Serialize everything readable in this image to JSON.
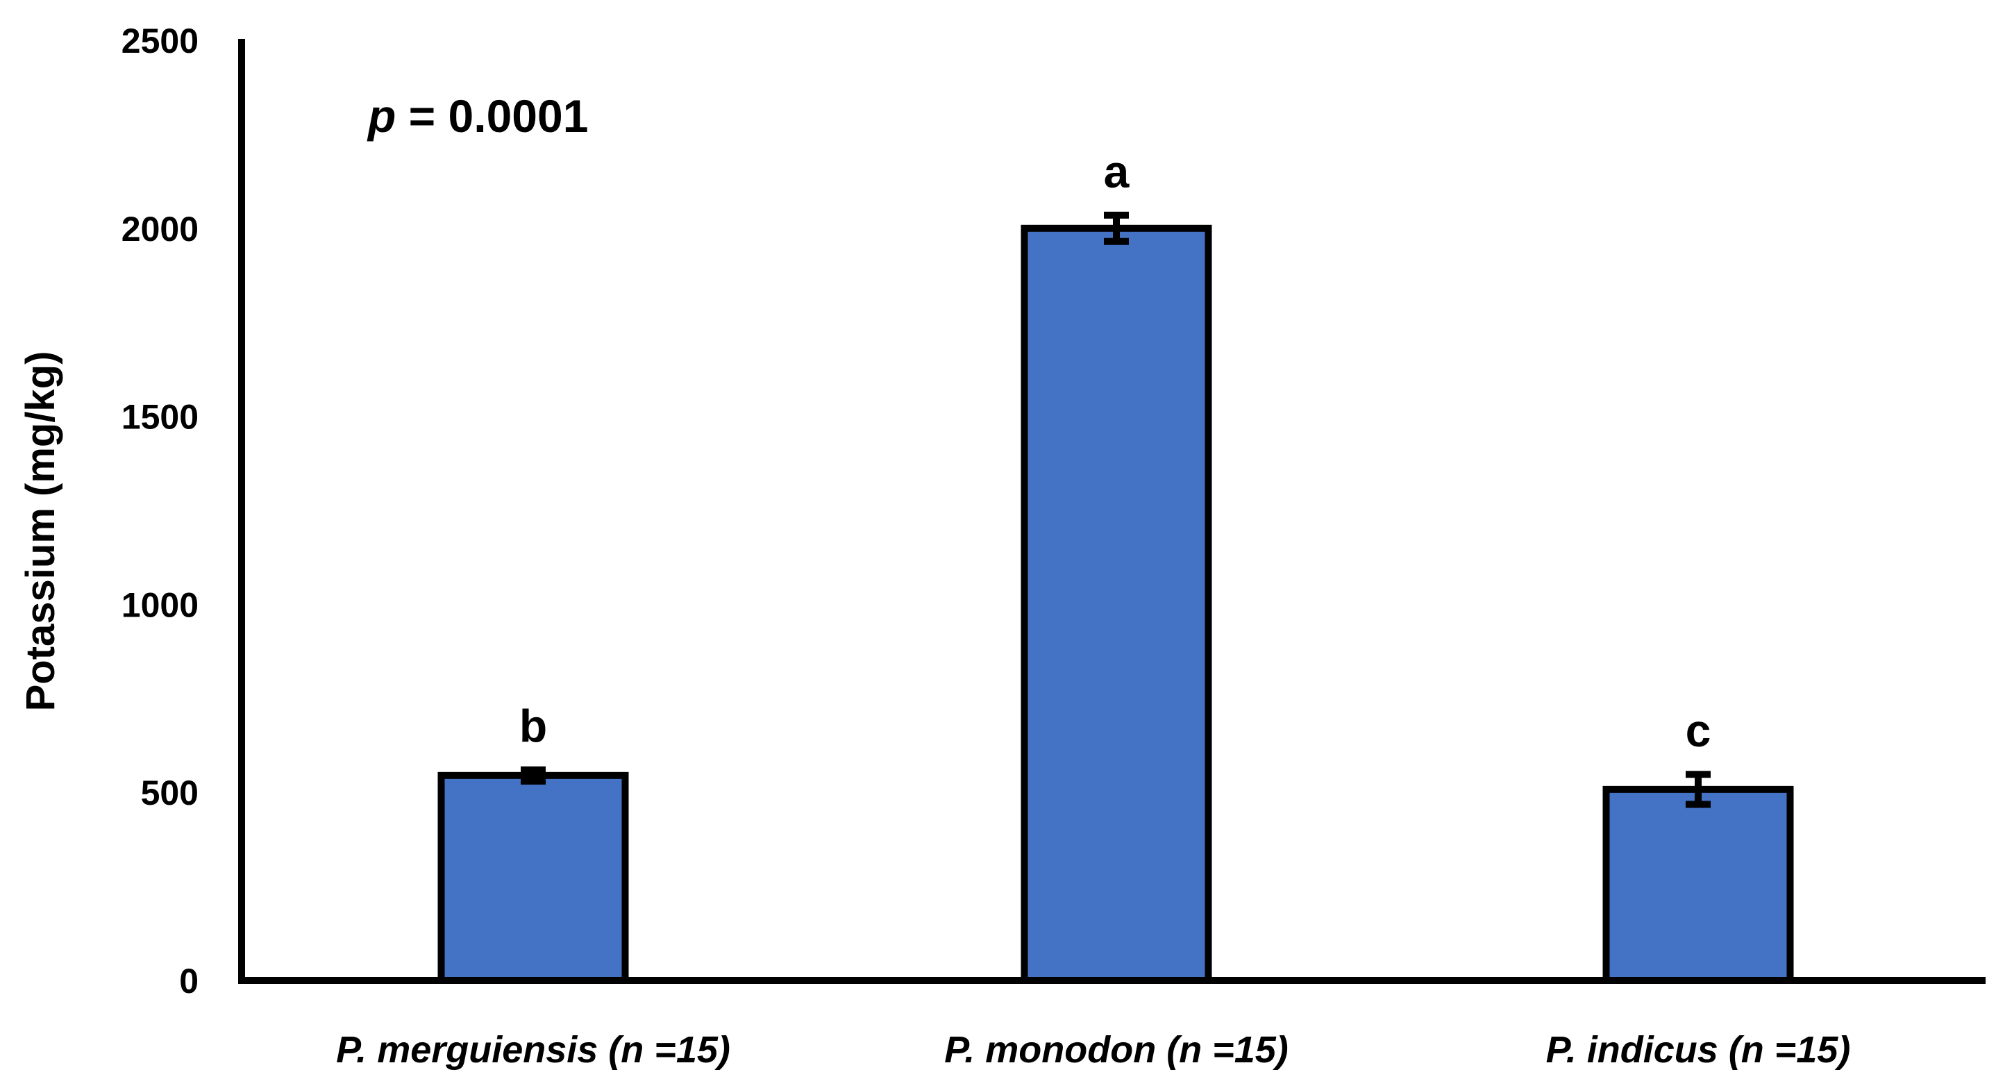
{
  "chart_data": {
    "type": "bar",
    "categories": [
      "P. merguiensis (n =15)",
      "P. monodon (n =15)",
      "P. indicus (n =15)"
    ],
    "values": [
      545,
      2000,
      508
    ],
    "errors": [
      15,
      35,
      40
    ],
    "significance_letters": [
      "b",
      "a",
      "c"
    ],
    "ylabel": "Potassium (mg/kg)",
    "xlabel": "",
    "ylim": [
      0,
      2500
    ],
    "yticks": [
      0,
      500,
      1000,
      1500,
      2000,
      2500
    ],
    "annotation": {
      "p_symbol": "p",
      "p_text": " = 0.0001"
    },
    "grid": false,
    "bar_color": "#4472C4",
    "edge_color": "#000000"
  }
}
